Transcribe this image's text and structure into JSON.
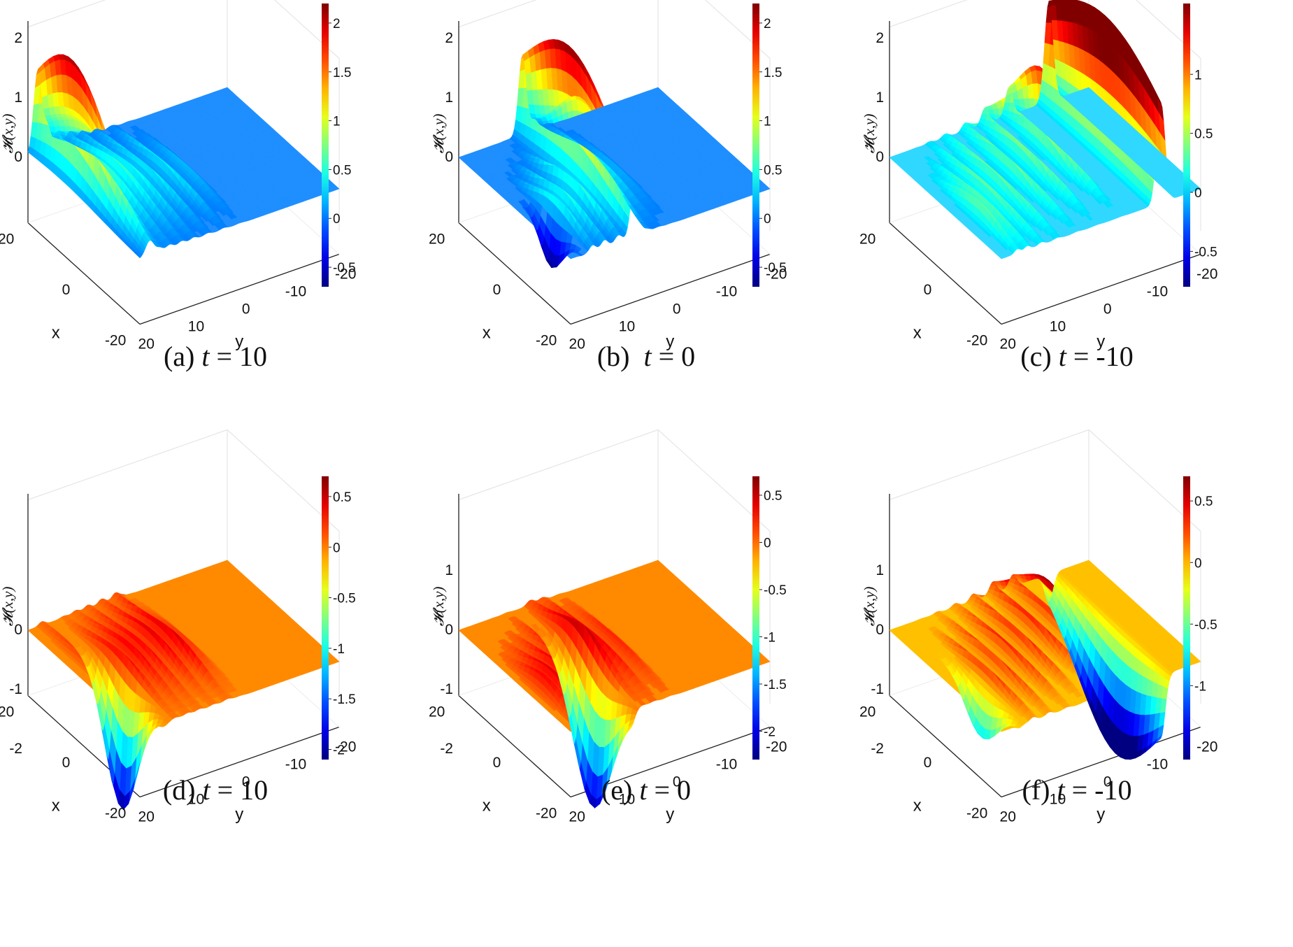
{
  "chart_data": [
    {
      "type": "surface",
      "label": "(a)",
      "t": "10",
      "zlabel": "𝓗(x,y)",
      "xlabel": "x",
      "ylabel": "y",
      "x_ticks": [
        "20",
        "0",
        "-20"
      ],
      "y_ticks": [
        "20",
        "10",
        "0",
        "-10",
        "-20"
      ],
      "z_ticks": [
        "2",
        "1",
        "0"
      ],
      "zlim": [
        -0.7,
        2.2
      ],
      "colorbar_ticks": [
        "2",
        "1.5",
        "1",
        "0.5",
        "0",
        "-0.5"
      ],
      "colorbar_range": [
        -0.7,
        2.2
      ],
      "base_level": 0,
      "base_color": "#1f8fff",
      "crests": [
        {
          "u": 0.5,
          "h": 0.2,
          "w": 0.03,
          "l": 0.5,
          "s": 0.3
        },
        {
          "u": 0.42,
          "h": 0.55,
          "w": 0.026,
          "l": 0.48,
          "s": 0.3
        },
        {
          "u": 0.34,
          "h": 0.6,
          "w": 0.026,
          "l": 0.46,
          "s": 0.32
        },
        {
          "u": 0.27,
          "h": 0.7,
          "w": 0.024,
          "l": 0.44,
          "s": 0.34
        },
        {
          "u": 0.21,
          "h": 0.75,
          "w": 0.024,
          "l": 0.42,
          "s": 0.36
        },
        {
          "u": 0.15,
          "h": 0.8,
          "w": 0.024,
          "l": 0.4,
          "s": 0.38
        },
        {
          "u": 0.1,
          "h": 0.85,
          "w": 0.022,
          "l": 0.36,
          "s": 0.4
        },
        {
          "u": 0.05,
          "h": 2.1,
          "w": 0.03,
          "l": 0.3,
          "s": 0.48
        }
      ]
    },
    {
      "type": "surface",
      "label": "(b)",
      "t": "0",
      "zlabel": "𝓗(x,y)",
      "xlabel": "x",
      "ylabel": "y",
      "x_ticks": [
        "20",
        "0",
        "-20"
      ],
      "y_ticks": [
        "20",
        "10",
        "0",
        "-10",
        "-20"
      ],
      "z_ticks": [
        "2",
        "1",
        "0"
      ],
      "zlim": [
        -0.7,
        2.2
      ],
      "colorbar_ticks": [
        "2",
        "1.5",
        "1",
        "0.5",
        "0",
        "-0.5"
      ],
      "colorbar_range": [
        -0.7,
        2.2
      ],
      "base_level": 0,
      "base_color": "#1f8fff",
      "crests": [
        {
          "u": 0.5,
          "h": 0.15,
          "w": 0.03,
          "l": 0.5,
          "s": 0.3
        },
        {
          "u": 0.44,
          "h": 0.4,
          "w": 0.026,
          "l": 0.46,
          "s": 0.32
        },
        {
          "u": 0.38,
          "h": 1.25,
          "w": 0.026,
          "l": 0.44,
          "s": 0.32
        },
        {
          "u": 0.32,
          "h": 2.2,
          "w": 0.028,
          "l": 0.42,
          "s": 0.6
        },
        {
          "u": 0.24,
          "h": 0.9,
          "w": 0.024,
          "l": 0.6,
          "s": 0.28
        },
        {
          "u": 0.17,
          "h": 0.8,
          "w": 0.024,
          "l": 0.64,
          "s": 0.26
        },
        {
          "u": 0.11,
          "h": 0.6,
          "w": 0.022,
          "l": 0.68,
          "s": 0.24
        },
        {
          "u": 0.06,
          "h": -0.7,
          "w": 0.02,
          "l": 0.72,
          "s": 0.14
        }
      ]
    },
    {
      "type": "surface",
      "label": "(c)",
      "t": "-10",
      "zlabel": "𝓗(x,y)",
      "xlabel": "x",
      "ylabel": "y",
      "x_ticks": [
        "20",
        "0",
        "-20"
      ],
      "y_ticks": [
        "20",
        "10",
        "0",
        "-10",
        "-20"
      ],
      "z_ticks": [
        "2",
        "1",
        "0"
      ],
      "zlim": [
        -0.8,
        1.6
      ],
      "colorbar_ticks": [
        "1",
        "0.5",
        "0",
        "-0.5"
      ],
      "colorbar_range": [
        -0.8,
        1.6
      ],
      "base_level": 0,
      "base_color": "#30d8ff",
      "crests": [
        {
          "u": 0.8,
          "h": 2.3,
          "w": 0.03,
          "l": 0.5,
          "s": 0.9
        },
        {
          "u": 0.6,
          "h": 1.3,
          "w": 0.026,
          "l": 0.3,
          "s": 0.3
        },
        {
          "u": 0.48,
          "h": 1.0,
          "w": 0.026,
          "l": 0.34,
          "s": 0.3
        },
        {
          "u": 0.38,
          "h": 0.8,
          "w": 0.024,
          "l": 0.4,
          "s": 0.3
        },
        {
          "u": 0.28,
          "h": 0.7,
          "w": 0.024,
          "l": 0.46,
          "s": 0.3
        },
        {
          "u": 0.2,
          "h": 0.6,
          "w": 0.022,
          "l": 0.52,
          "s": 0.3
        },
        {
          "u": 0.13,
          "h": 0.5,
          "w": 0.022,
          "l": 0.6,
          "s": 0.28
        },
        {
          "u": 0.08,
          "h": 0.4,
          "w": 0.02,
          "l": 0.66,
          "s": 0.26
        }
      ]
    },
    {
      "type": "surface",
      "label": "(d)",
      "t": "10",
      "zlabel": "𝓗(x,y)",
      "xlabel": "x",
      "ylabel": "y",
      "x_ticks": [
        "20",
        "0",
        "-20"
      ],
      "y_ticks": [
        "20",
        "10",
        "0",
        "-10",
        "-20"
      ],
      "z_ticks": [
        "0",
        "-1",
        "-2"
      ],
      "zlim": [
        -2.1,
        0.7
      ],
      "colorbar_ticks": [
        "0.5",
        "0",
        "-0.5",
        "-1",
        "-1.5",
        "-2"
      ],
      "colorbar_range": [
        -2.1,
        0.7
      ],
      "base_level": 0,
      "base_color": "#ff8a00",
      "crests": [
        {
          "u": 0.5,
          "h": 0.2,
          "w": 0.03,
          "l": 0.5,
          "s": 0.3
        },
        {
          "u": 0.44,
          "h": 0.75,
          "w": 0.026,
          "l": 0.44,
          "s": 0.32
        },
        {
          "u": 0.37,
          "h": 0.6,
          "w": 0.026,
          "l": 0.44,
          "s": 0.32
        },
        {
          "u": 0.3,
          "h": 0.55,
          "w": 0.024,
          "l": 0.46,
          "s": 0.32
        },
        {
          "u": 0.24,
          "h": 0.5,
          "w": 0.024,
          "l": 0.48,
          "s": 0.32
        },
        {
          "u": 0.18,
          "h": 0.45,
          "w": 0.024,
          "l": 0.5,
          "s": 0.3
        },
        {
          "u": 0.12,
          "h": -2.1,
          "w": 0.025,
          "l": 0.62,
          "s": 0.2
        },
        {
          "u": 0.07,
          "h": 0.25,
          "w": 0.022,
          "l": 0.4,
          "s": 0.34
        }
      ]
    },
    {
      "type": "surface",
      "label": "(e)",
      "t": "0",
      "zlabel": "𝓗(x,y)",
      "xlabel": "x",
      "ylabel": "y",
      "x_ticks": [
        "20",
        "0",
        "-20"
      ],
      "y_ticks": [
        "20",
        "10",
        "0",
        "-10",
        "-20"
      ],
      "z_ticks": [
        "1",
        "0",
        "-1",
        "-2"
      ],
      "zlim": [
        -2.3,
        0.7
      ],
      "colorbar_ticks": [
        "0.5",
        "0",
        "-0.5",
        "-1",
        "-1.5",
        "-2"
      ],
      "colorbar_range": [
        -2.3,
        0.7
      ],
      "base_level": 0,
      "base_color": "#ff8a00",
      "crests": [
        {
          "u": 0.5,
          "h": 0.25,
          "w": 0.03,
          "l": 0.5,
          "s": 0.3
        },
        {
          "u": 0.42,
          "h": 0.6,
          "w": 0.026,
          "l": 0.46,
          "s": 0.3
        },
        {
          "u": 0.36,
          "h": 0.7,
          "w": 0.026,
          "l": 0.44,
          "s": 0.3
        },
        {
          "u": 0.3,
          "h": -2.2,
          "w": 0.028,
          "l": 0.66,
          "s": 0.24
        },
        {
          "u": 0.24,
          "h": 0.7,
          "w": 0.024,
          "l": 0.56,
          "s": 0.28
        },
        {
          "u": 0.17,
          "h": 0.6,
          "w": 0.024,
          "l": 0.6,
          "s": 0.26
        },
        {
          "u": 0.11,
          "h": 0.55,
          "w": 0.022,
          "l": 0.64,
          "s": 0.26
        },
        {
          "u": 0.06,
          "h": 0.35,
          "w": 0.022,
          "l": 0.66,
          "s": 0.24
        }
      ]
    },
    {
      "type": "surface",
      "label": "(f)",
      "t": "-10",
      "zlabel": "𝓗(x,y)",
      "xlabel": "x",
      "ylabel": "y",
      "x_ticks": [
        "20",
        "0",
        "-20"
      ],
      "y_ticks": [
        "20",
        "10",
        "0",
        "-10",
        "-20"
      ],
      "z_ticks": [
        "1",
        "0",
        "-1",
        "-2"
      ],
      "zlim": [
        -1.6,
        0.7
      ],
      "colorbar_ticks": [
        "0.5",
        "0",
        "-0.5",
        "-1"
      ],
      "colorbar_range": [
        -1.6,
        0.7
      ],
      "base_level": 0,
      "base_color": "#ffc000",
      "crests": [
        {
          "u": 0.8,
          "h": -2.0,
          "w": 0.03,
          "l": 0.6,
          "s": 0.5
        },
        {
          "u": 0.62,
          "h": 0.65,
          "w": 0.026,
          "l": 0.32,
          "s": 0.3
        },
        {
          "u": 0.52,
          "h": 0.75,
          "w": 0.026,
          "l": 0.34,
          "s": 0.3
        },
        {
          "u": 0.42,
          "h": 0.7,
          "w": 0.024,
          "l": 0.4,
          "s": 0.3
        },
        {
          "u": 0.33,
          "h": 0.65,
          "w": 0.024,
          "l": 0.46,
          "s": 0.3
        },
        {
          "u": 0.24,
          "h": 0.6,
          "w": 0.022,
          "l": 0.52,
          "s": 0.3
        },
        {
          "u": 0.16,
          "h": 0.55,
          "w": 0.022,
          "l": 0.58,
          "s": 0.28
        },
        {
          "u": 0.09,
          "h": -0.8,
          "w": 0.02,
          "l": 0.66,
          "s": 0.2
        }
      ]
    }
  ]
}
